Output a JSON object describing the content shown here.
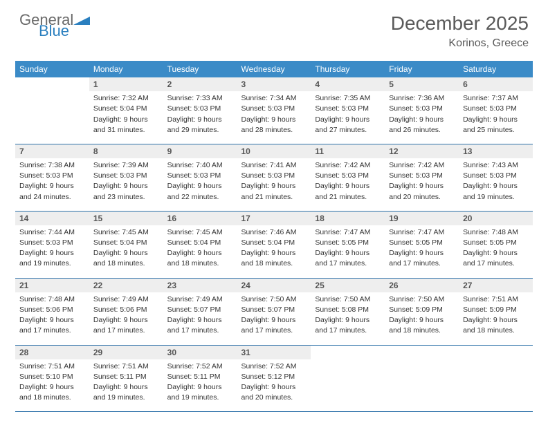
{
  "logo": {
    "general": "General",
    "blue": "Blue"
  },
  "title": "December 2025",
  "location": "Korinos, Greece",
  "colors": {
    "header_bg": "#3b8bc7",
    "row_border": "#2a6fa8",
    "daynum_bg": "#eeeeee",
    "text": "#333333",
    "title_text": "#5a5a5a"
  },
  "weekdays": [
    "Sunday",
    "Monday",
    "Tuesday",
    "Wednesday",
    "Thursday",
    "Friday",
    "Saturday"
  ],
  "weeks": [
    {
      "nums": [
        "",
        "1",
        "2",
        "3",
        "4",
        "5",
        "6"
      ],
      "cells": [
        {
          "empty": true
        },
        {
          "sunrise": "Sunrise: 7:32 AM",
          "sunset": "Sunset: 5:04 PM",
          "dl1": "Daylight: 9 hours",
          "dl2": "and 31 minutes."
        },
        {
          "sunrise": "Sunrise: 7:33 AM",
          "sunset": "Sunset: 5:03 PM",
          "dl1": "Daylight: 9 hours",
          "dl2": "and 29 minutes."
        },
        {
          "sunrise": "Sunrise: 7:34 AM",
          "sunset": "Sunset: 5:03 PM",
          "dl1": "Daylight: 9 hours",
          "dl2": "and 28 minutes."
        },
        {
          "sunrise": "Sunrise: 7:35 AM",
          "sunset": "Sunset: 5:03 PM",
          "dl1": "Daylight: 9 hours",
          "dl2": "and 27 minutes."
        },
        {
          "sunrise": "Sunrise: 7:36 AM",
          "sunset": "Sunset: 5:03 PM",
          "dl1": "Daylight: 9 hours",
          "dl2": "and 26 minutes."
        },
        {
          "sunrise": "Sunrise: 7:37 AM",
          "sunset": "Sunset: 5:03 PM",
          "dl1": "Daylight: 9 hours",
          "dl2": "and 25 minutes."
        }
      ]
    },
    {
      "nums": [
        "7",
        "8",
        "9",
        "10",
        "11",
        "12",
        "13"
      ],
      "cells": [
        {
          "sunrise": "Sunrise: 7:38 AM",
          "sunset": "Sunset: 5:03 PM",
          "dl1": "Daylight: 9 hours",
          "dl2": "and 24 minutes."
        },
        {
          "sunrise": "Sunrise: 7:39 AM",
          "sunset": "Sunset: 5:03 PM",
          "dl1": "Daylight: 9 hours",
          "dl2": "and 23 minutes."
        },
        {
          "sunrise": "Sunrise: 7:40 AM",
          "sunset": "Sunset: 5:03 PM",
          "dl1": "Daylight: 9 hours",
          "dl2": "and 22 minutes."
        },
        {
          "sunrise": "Sunrise: 7:41 AM",
          "sunset": "Sunset: 5:03 PM",
          "dl1": "Daylight: 9 hours",
          "dl2": "and 21 minutes."
        },
        {
          "sunrise": "Sunrise: 7:42 AM",
          "sunset": "Sunset: 5:03 PM",
          "dl1": "Daylight: 9 hours",
          "dl2": "and 21 minutes."
        },
        {
          "sunrise": "Sunrise: 7:42 AM",
          "sunset": "Sunset: 5:03 PM",
          "dl1": "Daylight: 9 hours",
          "dl2": "and 20 minutes."
        },
        {
          "sunrise": "Sunrise: 7:43 AM",
          "sunset": "Sunset: 5:03 PM",
          "dl1": "Daylight: 9 hours",
          "dl2": "and 19 minutes."
        }
      ]
    },
    {
      "nums": [
        "14",
        "15",
        "16",
        "17",
        "18",
        "19",
        "20"
      ],
      "cells": [
        {
          "sunrise": "Sunrise: 7:44 AM",
          "sunset": "Sunset: 5:03 PM",
          "dl1": "Daylight: 9 hours",
          "dl2": "and 19 minutes."
        },
        {
          "sunrise": "Sunrise: 7:45 AM",
          "sunset": "Sunset: 5:04 PM",
          "dl1": "Daylight: 9 hours",
          "dl2": "and 18 minutes."
        },
        {
          "sunrise": "Sunrise: 7:45 AM",
          "sunset": "Sunset: 5:04 PM",
          "dl1": "Daylight: 9 hours",
          "dl2": "and 18 minutes."
        },
        {
          "sunrise": "Sunrise: 7:46 AM",
          "sunset": "Sunset: 5:04 PM",
          "dl1": "Daylight: 9 hours",
          "dl2": "and 18 minutes."
        },
        {
          "sunrise": "Sunrise: 7:47 AM",
          "sunset": "Sunset: 5:05 PM",
          "dl1": "Daylight: 9 hours",
          "dl2": "and 17 minutes."
        },
        {
          "sunrise": "Sunrise: 7:47 AM",
          "sunset": "Sunset: 5:05 PM",
          "dl1": "Daylight: 9 hours",
          "dl2": "and 17 minutes."
        },
        {
          "sunrise": "Sunrise: 7:48 AM",
          "sunset": "Sunset: 5:05 PM",
          "dl1": "Daylight: 9 hours",
          "dl2": "and 17 minutes."
        }
      ]
    },
    {
      "nums": [
        "21",
        "22",
        "23",
        "24",
        "25",
        "26",
        "27"
      ],
      "cells": [
        {
          "sunrise": "Sunrise: 7:48 AM",
          "sunset": "Sunset: 5:06 PM",
          "dl1": "Daylight: 9 hours",
          "dl2": "and 17 minutes."
        },
        {
          "sunrise": "Sunrise: 7:49 AM",
          "sunset": "Sunset: 5:06 PM",
          "dl1": "Daylight: 9 hours",
          "dl2": "and 17 minutes."
        },
        {
          "sunrise": "Sunrise: 7:49 AM",
          "sunset": "Sunset: 5:07 PM",
          "dl1": "Daylight: 9 hours",
          "dl2": "and 17 minutes."
        },
        {
          "sunrise": "Sunrise: 7:50 AM",
          "sunset": "Sunset: 5:07 PM",
          "dl1": "Daylight: 9 hours",
          "dl2": "and 17 minutes."
        },
        {
          "sunrise": "Sunrise: 7:50 AM",
          "sunset": "Sunset: 5:08 PM",
          "dl1": "Daylight: 9 hours",
          "dl2": "and 17 minutes."
        },
        {
          "sunrise": "Sunrise: 7:50 AM",
          "sunset": "Sunset: 5:09 PM",
          "dl1": "Daylight: 9 hours",
          "dl2": "and 18 minutes."
        },
        {
          "sunrise": "Sunrise: 7:51 AM",
          "sunset": "Sunset: 5:09 PM",
          "dl1": "Daylight: 9 hours",
          "dl2": "and 18 minutes."
        }
      ]
    },
    {
      "nums": [
        "28",
        "29",
        "30",
        "31",
        "",
        "",
        ""
      ],
      "cells": [
        {
          "sunrise": "Sunrise: 7:51 AM",
          "sunset": "Sunset: 5:10 PM",
          "dl1": "Daylight: 9 hours",
          "dl2": "and 18 minutes."
        },
        {
          "sunrise": "Sunrise: 7:51 AM",
          "sunset": "Sunset: 5:11 PM",
          "dl1": "Daylight: 9 hours",
          "dl2": "and 19 minutes."
        },
        {
          "sunrise": "Sunrise: 7:52 AM",
          "sunset": "Sunset: 5:11 PM",
          "dl1": "Daylight: 9 hours",
          "dl2": "and 19 minutes."
        },
        {
          "sunrise": "Sunrise: 7:52 AM",
          "sunset": "Sunset: 5:12 PM",
          "dl1": "Daylight: 9 hours",
          "dl2": "and 20 minutes."
        },
        {
          "empty": true
        },
        {
          "empty": true
        },
        {
          "empty": true
        }
      ]
    }
  ]
}
